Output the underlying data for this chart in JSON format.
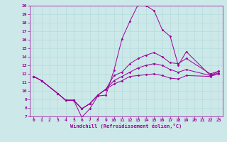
{
  "xlabel": "Windchill (Refroidissement éolien,°C)",
  "bg_color": "#cce8e8",
  "line_color": "#990099",
  "x_ticks": [
    0,
    1,
    2,
    3,
    4,
    5,
    6,
    7,
    8,
    9,
    10,
    11,
    12,
    13,
    14,
    15,
    16,
    17,
    18,
    19,
    20,
    21,
    22,
    23
  ],
  "ylim": [
    7,
    20
  ],
  "xlim": [
    -0.5,
    23.5
  ],
  "yticks": [
    7,
    8,
    9,
    10,
    11,
    12,
    13,
    14,
    15,
    16,
    17,
    18,
    19,
    20
  ],
  "series": [
    [
      11.7,
      11.2,
      null,
      9.7,
      8.9,
      8.9,
      6.9,
      7.9,
      9.4,
      9.5,
      12.4,
      16.1,
      18.2,
      20.1,
      20.0,
      19.4,
      17.2,
      16.4,
      13.0,
      14.6,
      null,
      null,
      11.8,
      12.3
    ],
    [
      11.7,
      11.2,
      null,
      9.7,
      8.9,
      8.9,
      7.9,
      8.5,
      9.5,
      10.2,
      11.8,
      12.2,
      13.2,
      13.8,
      14.2,
      14.5,
      14.0,
      13.3,
      13.2,
      13.8,
      null,
      null,
      12.0,
      12.3
    ],
    [
      11.7,
      11.2,
      null,
      9.7,
      8.9,
      8.9,
      7.9,
      8.5,
      9.5,
      10.2,
      11.2,
      11.7,
      12.2,
      12.7,
      13.0,
      13.2,
      13.0,
      12.5,
      12.2,
      12.5,
      null,
      null,
      11.8,
      12.1
    ],
    [
      11.7,
      11.2,
      null,
      9.7,
      8.9,
      8.9,
      7.9,
      8.5,
      9.5,
      10.2,
      10.8,
      11.2,
      11.7,
      11.8,
      11.9,
      12.0,
      11.8,
      11.5,
      11.4,
      11.8,
      null,
      null,
      11.7,
      12.0
    ]
  ]
}
